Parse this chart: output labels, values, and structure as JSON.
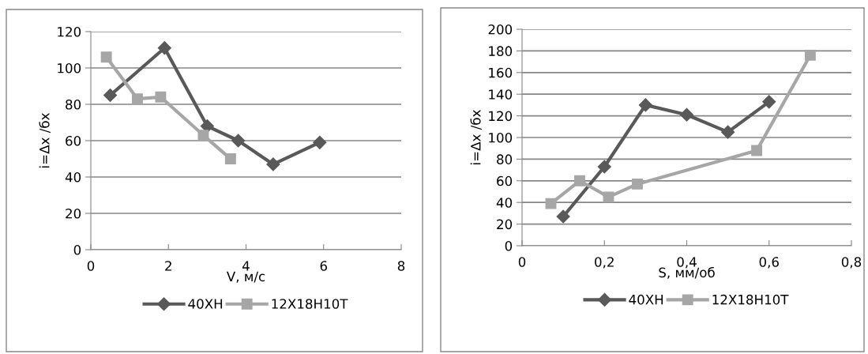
{
  "chart_data": [
    {
      "type": "line",
      "xlabel": "V, м/с",
      "ylabel": "i=Δx /бх",
      "xlim": [
        0,
        8
      ],
      "xticks": [
        0,
        2,
        4,
        6,
        8
      ],
      "ylim": [
        0,
        120
      ],
      "yticks": [
        0,
        20,
        40,
        60,
        80,
        100,
        120
      ],
      "grid": "y",
      "legend": "bottom",
      "series": [
        {
          "name": "40ХН",
          "color": "#595959",
          "marker": "diamond",
          "x": [
            0.5,
            1.9,
            3.0,
            3.8,
            4.7,
            5.9
          ],
          "values": [
            85,
            111,
            68,
            60,
            47,
            59
          ]
        },
        {
          "name": "12Х18Н10Т",
          "color": "#a6a6a6",
          "marker": "square",
          "x": [
            0.4,
            1.2,
            1.8,
            2.9,
            3.6
          ],
          "values": [
            106,
            83,
            84,
            63,
            50
          ]
        }
      ]
    },
    {
      "type": "line",
      "xlabel": "S, мм/об",
      "ylabel": "i=Δx /бх",
      "xlim": [
        0,
        0.8
      ],
      "xticks": [
        0,
        {
          "value": 0.2,
          "label": "0,2"
        },
        {
          "value": 0.4,
          "label": "0,4"
        },
        {
          "value": 0.6,
          "label": "0,6"
        },
        {
          "value": 0.8,
          "label": "0,8"
        }
      ],
      "ylim": [
        0,
        200
      ],
      "yticks": [
        0,
        20,
        40,
        60,
        80,
        100,
        120,
        140,
        160,
        180,
        200
      ],
      "grid": "y",
      "legend": "bottom",
      "series": [
        {
          "name": "40ХН",
          "color": "#595959",
          "marker": "diamond",
          "x": [
            0.1,
            0.2,
            0.3,
            0.4,
            0.5,
            0.6
          ],
          "values": [
            27,
            73,
            130,
            121,
            105,
            133
          ]
        },
        {
          "name": "12Х18Н10Т",
          "color": "#a6a6a6",
          "marker": "square",
          "x": [
            0.07,
            0.14,
            0.21,
            0.28,
            0.57,
            0.7
          ],
          "values": [
            39,
            60,
            45,
            57,
            88,
            176
          ]
        }
      ]
    }
  ]
}
